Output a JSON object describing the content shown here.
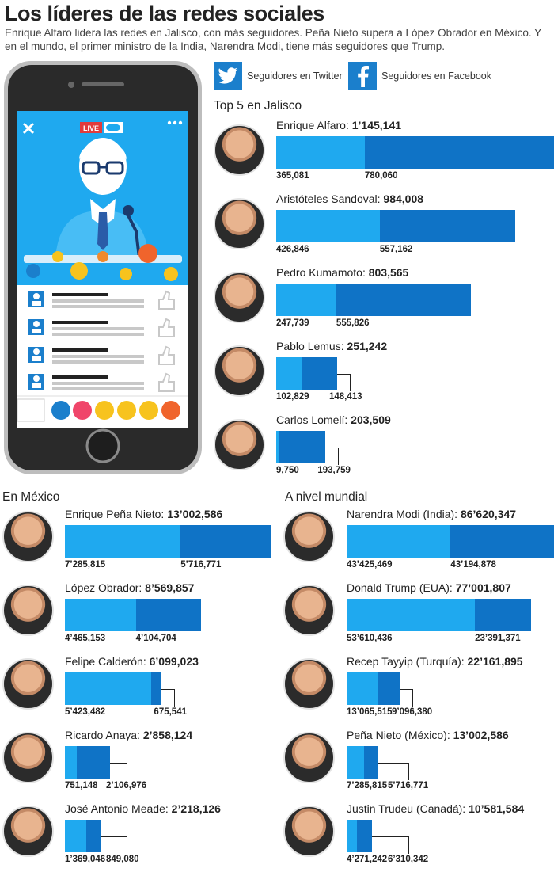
{
  "title": "Los líderes de las redes sociales",
  "subtitle": "Enrique Alfaro lidera las redes en Jalisco, con más seguidores. Peña Nieto supera a López Obrador en México. Y en el mundo,  el primer ministro de la India, Narendra Modi, tiene más seguidores que Trump.",
  "legend": {
    "twitter_label": "Seguidores en Twitter",
    "facebook_label": "Seguidores en Facebook",
    "twitter_color": "#1fa9ef",
    "facebook_color": "#0f73c6"
  },
  "phone": {
    "live_label": "LIVE"
  },
  "chart_data": [
    {
      "type": "bar",
      "stacked": true,
      "section_title": "Top 5 en Jalisco",
      "series_names": [
        "Seguidores en Twitter",
        "Seguidores en Facebook"
      ],
      "rows": [
        {
          "name": "Enrique Alfaro:",
          "total": "1’145,141",
          "twitter": 365081,
          "facebook": 780060,
          "twitter_label": "365,081",
          "facebook_label": "780,060"
        },
        {
          "name": "Aristóteles Sandoval:",
          "total": "984,008",
          "twitter": 426846,
          "facebook": 557162,
          "twitter_label": "426,846",
          "facebook_label": "557,162"
        },
        {
          "name": "Pedro Kumamoto:",
          "total": "803,565",
          "twitter": 247739,
          "facebook": 555826,
          "twitter_label": "247,739",
          "facebook_label": "555,826"
        },
        {
          "name": "Pablo Lemus:",
          "total": "251,242",
          "twitter": 102829,
          "facebook": 148413,
          "twitter_label": "102,829",
          "facebook_label": "148,413"
        },
        {
          "name": "Carlos Lomelí:",
          "total": "203,509",
          "twitter": 9750,
          "facebook": 193759,
          "twitter_label": "9,750",
          "facebook_label": "193,759"
        }
      ]
    },
    {
      "type": "bar",
      "stacked": true,
      "section_title": "En México",
      "series_names": [
        "Seguidores en Twitter",
        "Seguidores en Facebook"
      ],
      "rows": [
        {
          "name": "Enrique Peña Nieto:",
          "total": "13’002,586",
          "twitter": 7285815,
          "facebook": 5716771,
          "twitter_label": "7’285,815",
          "facebook_label": "5’716,771"
        },
        {
          "name": "López Obrador:",
          "total": "8’569,857",
          "twitter": 4465153,
          "facebook": 4104704,
          "twitter_label": "4’465,153",
          "facebook_label": "4’104,704"
        },
        {
          "name": "Felipe Calderón:",
          "total": "6’099,023",
          "twitter": 5423482,
          "facebook": 675541,
          "twitter_label": "5’423,482",
          "facebook_label": "675,541"
        },
        {
          "name": "Ricardo Anaya:",
          "total": "2’858,124",
          "twitter": 751148,
          "facebook": 2106976,
          "twitter_label": "751,148",
          "facebook_label": "2’106,976"
        },
        {
          "name": "José Antonio Meade:",
          "total": "2’218,126",
          "twitter": 1369046,
          "facebook": 849080,
          "twitter_label": "1’369,046",
          "facebook_label": "849,080"
        }
      ]
    },
    {
      "type": "bar",
      "stacked": true,
      "section_title": "A nivel mundial",
      "series_names": [
        "Seguidores en Twitter",
        "Seguidores en Facebook"
      ],
      "rows": [
        {
          "name": "Narendra Modi (India):",
          "total": "86’620,347",
          "twitter": 43425469,
          "facebook": 43194878,
          "twitter_label": "43’425,469",
          "facebook_label": "43’194,878"
        },
        {
          "name": "Donald Trump (EUA):",
          "total": "77’001,807",
          "twitter": 53610436,
          "facebook": 23391371,
          "twitter_label": "53’610,436",
          "facebook_label": "23’391,371"
        },
        {
          "name": "Recep Tayyip (Turquía):",
          "total": "22’161,895",
          "twitter": 13065515,
          "facebook": 9096380,
          "twitter_label": "13’065,515",
          "facebook_label": "9’096,380"
        },
        {
          "name": "Peña Nieto (México):",
          "total": "13’002,586",
          "twitter": 7285815,
          "facebook": 5716771,
          "twitter_label": "7’285,815",
          "facebook_label": "5’716,771"
        },
        {
          "name": "Justin Trudeu (Canadá):",
          "total": "10’581,584",
          "twitter": 4271242,
          "facebook": 6310342,
          "twitter_label": "4’271,242",
          "facebook_label": "6’310,342"
        }
      ]
    }
  ]
}
